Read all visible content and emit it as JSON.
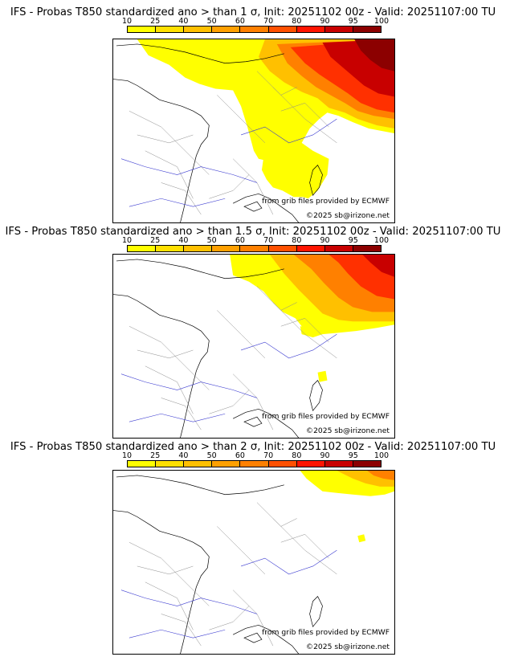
{
  "legend": {
    "ticks": [
      "10",
      "25",
      "40",
      "50",
      "60",
      "70",
      "80",
      "90",
      "95",
      "100"
    ],
    "colors": [
      "#ffff00",
      "#ffe000",
      "#ffc000",
      "#ffa000",
      "#ff8000",
      "#ff5000",
      "#ff1400",
      "#c80000",
      "#8c0000"
    ]
  },
  "credits": {
    "source": "from grib files provided by ECMWF",
    "copyright": "©2025 sb@irizone.net"
  },
  "panels": [
    {
      "title": "IFS - Probas T850  standardized ano > than 1 σ, Init: 20251102 00z - Valid: 20251107:00 TU",
      "sigma": 1
    },
    {
      "title": "IFS - Probas T850  standardized ano > than 1.5 σ, Init: 20251102 00z - Valid: 20251107:00 TU",
      "sigma": 1.5
    },
    {
      "title": "IFS - Probas T850  standardized ano > than 2 σ, Init: 20251102 00z - Valid: 20251107:00 TU",
      "sigma": 2
    }
  ]
}
